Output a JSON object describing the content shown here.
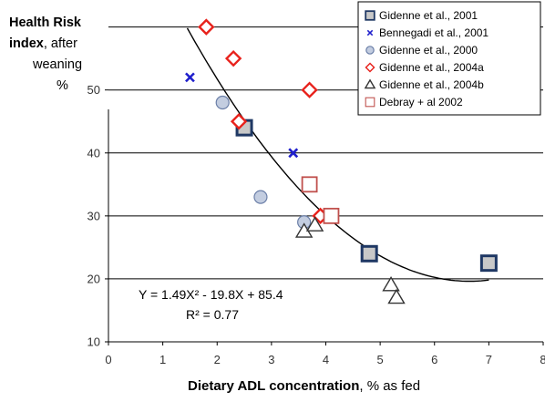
{
  "colors": {
    "gidenne2001": "#1f3864",
    "bennegadi": "#1f1fcc",
    "gidenne2000": "#8ea1c6",
    "gidenne2004a": "#e8221c",
    "gidenne2004b": "#333333",
    "debray": "#c0504d",
    "grid": "#000000",
    "trendline": "#000000"
  },
  "chart_data": {
    "type": "scatter",
    "ylabel_parts": [
      "Health Risk",
      "index",
      ", after",
      "weaning",
      "%"
    ],
    "xlabel_parts": [
      "Dietary ADL concentration",
      ", % as fed"
    ],
    "x_ticks": [
      "0",
      "1",
      "2",
      "3",
      "4",
      "5",
      "6",
      "7",
      "8"
    ],
    "y_ticks": [
      "10",
      "20",
      "30",
      "40",
      "50"
    ],
    "xlim": [
      0,
      8
    ],
    "ylim": [
      10,
      64
    ],
    "grid": "horizontal",
    "legend_position": "top-right",
    "series": [
      {
        "name": "Gidenne et al., 2001",
        "marker": "square-filled",
        "points": [
          [
            2.5,
            44
          ],
          [
            4.8,
            24
          ],
          [
            7.0,
            22.5
          ]
        ]
      },
      {
        "name": "Bennegadi et al., 2001",
        "marker": "x",
        "points": [
          [
            1.5,
            52
          ],
          [
            3.4,
            40
          ]
        ]
      },
      {
        "name": "Gidenne et al., 2000",
        "marker": "circle",
        "points": [
          [
            2.1,
            48
          ],
          [
            2.8,
            33
          ],
          [
            3.6,
            29
          ]
        ]
      },
      {
        "name": "Gidenne et al., 2004a",
        "marker": "diamond",
        "points": [
          [
            1.8,
            60
          ],
          [
            2.3,
            55
          ],
          [
            2.4,
            45
          ],
          [
            3.7,
            50
          ],
          [
            3.9,
            30
          ]
        ]
      },
      {
        "name": "Gidenne et al., 2004b",
        "marker": "triangle",
        "points": [
          [
            3.6,
            27.5
          ],
          [
            3.8,
            28.5
          ],
          [
            5.2,
            19
          ],
          [
            5.3,
            17
          ]
        ]
      },
      {
        "name": "Debray + al 2002",
        "marker": "square-open",
        "points": [
          [
            3.7,
            35
          ],
          [
            4.1,
            30
          ]
        ]
      }
    ],
    "trendline": {
      "type": "quadratic",
      "coefficients": {
        "a": 1.49,
        "b": -19.8,
        "c": 85.4
      },
      "x_range": [
        1.45,
        7.0
      ],
      "equation_label": "Y = 1.49X² - 19.8X + 85.4",
      "r2_label": "R² = 0.77"
    }
  }
}
